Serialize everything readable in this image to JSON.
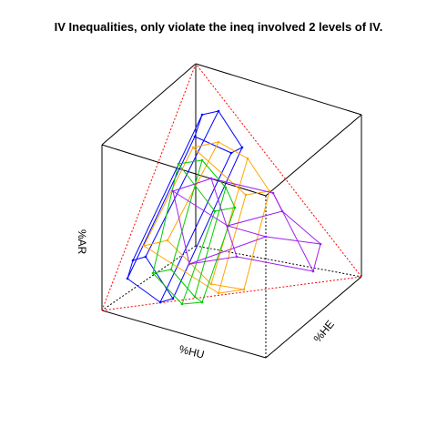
{
  "chart_data": {
    "type": "3d-polytope-wireframe",
    "title": "IV Inequalities, only violate the ineq involved 2 levels of IV.",
    "axes": {
      "hu_label": "%HU",
      "he_label": "%HE",
      "ar_label": "%AR"
    },
    "box_color": "#000000",
    "simplex_color": "#ff0000",
    "polytopes": [
      {
        "color": "#0000ff",
        "description": "blue"
      },
      {
        "color": "#ffa500",
        "description": "orange"
      },
      {
        "color": "#00cc00",
        "description": "green"
      },
      {
        "color": "#a020f0",
        "description": "purple"
      }
    ]
  }
}
